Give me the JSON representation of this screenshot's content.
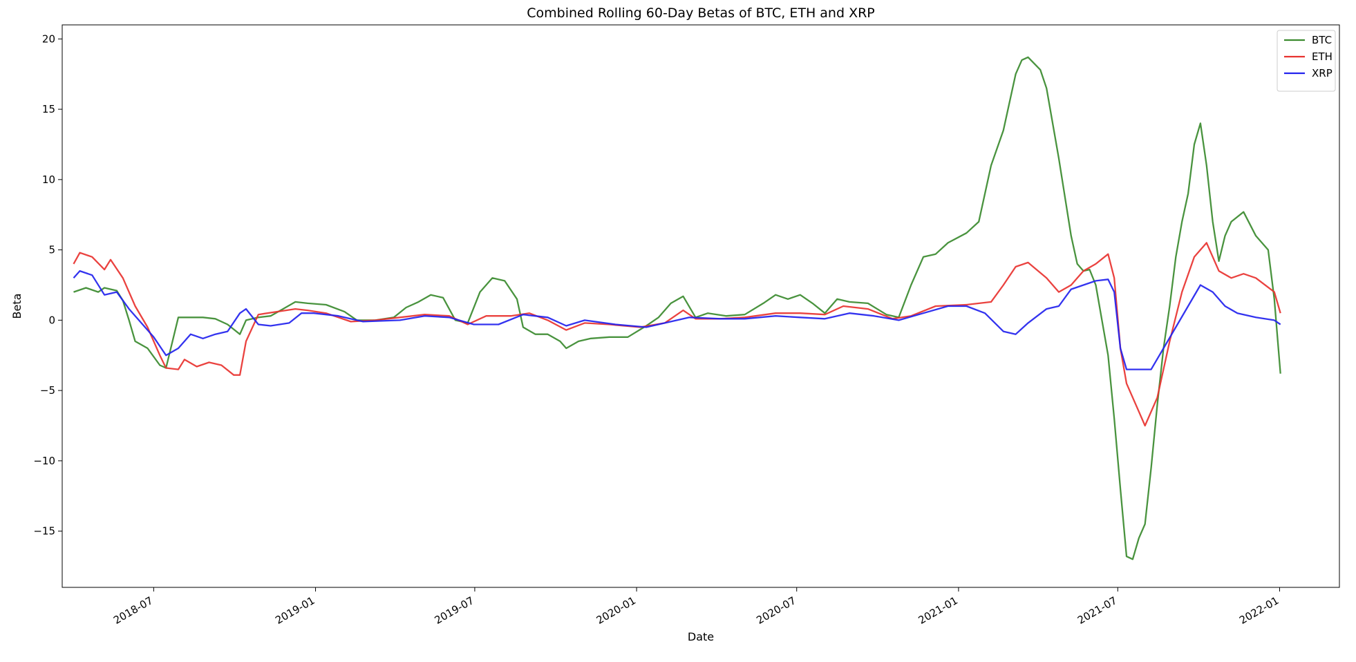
{
  "chart_data": {
    "type": "line",
    "title": "Combined Rolling 60-Day Betas of BTC, ETH and XRP",
    "xlabel": "Date",
    "ylabel": "Beta",
    "xlim": [
      "2018-03-19",
      "2022-03-10"
    ],
    "ylim": [
      -19,
      21
    ],
    "yticks": [
      20,
      15,
      10,
      5,
      0,
      -5,
      -10,
      -15
    ],
    "yticklabels": [
      "20",
      "15",
      "10",
      "5",
      "0",
      "−5",
      "−10",
      "−15"
    ],
    "xticks": [
      "2018-07",
      "2019-01",
      "2019-07",
      "2020-01",
      "2020-07",
      "2021-01",
      "2021-07",
      "2022-01"
    ],
    "grid": false,
    "legend_position": "top-right",
    "series": [
      {
        "name": "BTC",
        "color": "#3a8a2e",
        "points": [
          [
            "2018-04-01",
            2.0
          ],
          [
            "2018-04-15",
            2.3
          ],
          [
            "2018-04-29",
            2.0
          ],
          [
            "2018-05-06",
            2.3
          ],
          [
            "2018-05-20",
            2.1
          ],
          [
            "2018-05-27",
            1.4
          ],
          [
            "2018-06-03",
            0.0
          ],
          [
            "2018-06-10",
            -1.5
          ],
          [
            "2018-06-24",
            -2.0
          ],
          [
            "2018-07-08",
            -3.2
          ],
          [
            "2018-07-15",
            -3.4
          ],
          [
            "2018-07-29",
            0.2
          ],
          [
            "2018-08-12",
            0.2
          ],
          [
            "2018-08-26",
            0.2
          ],
          [
            "2018-09-09",
            0.1
          ],
          [
            "2018-09-23",
            -0.3
          ],
          [
            "2018-10-07",
            -1.0
          ],
          [
            "2018-10-14",
            0.0
          ],
          [
            "2018-10-28",
            0.2
          ],
          [
            "2018-11-11",
            0.3
          ],
          [
            "2018-11-25",
            0.8
          ],
          [
            "2018-12-09",
            1.3
          ],
          [
            "2018-12-23",
            1.2
          ],
          [
            "2019-01-13",
            1.1
          ],
          [
            "2019-02-03",
            0.6
          ],
          [
            "2019-02-17",
            0.0
          ],
          [
            "2019-03-10",
            0.0
          ],
          [
            "2019-03-31",
            0.2
          ],
          [
            "2019-04-14",
            0.9
          ],
          [
            "2019-04-28",
            1.3
          ],
          [
            "2019-05-12",
            1.8
          ],
          [
            "2019-05-26",
            1.6
          ],
          [
            "2019-06-09",
            0.0
          ],
          [
            "2019-06-23",
            -0.2
          ],
          [
            "2019-07-07",
            2.0
          ],
          [
            "2019-07-21",
            3.0
          ],
          [
            "2019-08-04",
            2.8
          ],
          [
            "2019-08-18",
            1.5
          ],
          [
            "2019-08-25",
            -0.5
          ],
          [
            "2019-09-08",
            -1.0
          ],
          [
            "2019-09-22",
            -1.0
          ],
          [
            "2019-10-06",
            -1.5
          ],
          [
            "2019-10-13",
            -2.0
          ],
          [
            "2019-10-27",
            -1.5
          ],
          [
            "2019-11-10",
            -1.3
          ],
          [
            "2019-12-01",
            -1.2
          ],
          [
            "2019-12-22",
            -1.2
          ],
          [
            "2020-01-12",
            -0.4
          ],
          [
            "2020-01-26",
            0.2
          ],
          [
            "2020-02-09",
            1.2
          ],
          [
            "2020-02-23",
            1.7
          ],
          [
            "2020-03-08",
            0.2
          ],
          [
            "2020-03-22",
            0.5
          ],
          [
            "2020-04-12",
            0.3
          ],
          [
            "2020-05-03",
            0.4
          ],
          [
            "2020-05-24",
            1.2
          ],
          [
            "2020-06-07",
            1.8
          ],
          [
            "2020-06-21",
            1.5
          ],
          [
            "2020-07-05",
            1.8
          ],
          [
            "2020-07-19",
            1.2
          ],
          [
            "2020-08-02",
            0.5
          ],
          [
            "2020-08-16",
            1.5
          ],
          [
            "2020-08-30",
            1.3
          ],
          [
            "2020-09-20",
            1.2
          ],
          [
            "2020-10-11",
            0.4
          ],
          [
            "2020-10-25",
            0.2
          ],
          [
            "2020-11-08",
            2.5
          ],
          [
            "2020-11-22",
            4.5
          ],
          [
            "2020-12-06",
            4.7
          ],
          [
            "2020-12-20",
            5.5
          ],
          [
            "2021-01-10",
            6.2
          ],
          [
            "2021-01-24",
            7.0
          ],
          [
            "2021-02-07",
            11.0
          ],
          [
            "2021-02-21",
            13.5
          ],
          [
            "2021-03-07",
            17.5
          ],
          [
            "2021-03-14",
            18.5
          ],
          [
            "2021-03-21",
            18.7
          ],
          [
            "2021-04-04",
            17.8
          ],
          [
            "2021-04-11",
            16.5
          ],
          [
            "2021-04-25",
            11.5
          ],
          [
            "2021-05-09",
            6.0
          ],
          [
            "2021-05-16",
            4.0
          ],
          [
            "2021-05-23",
            3.5
          ],
          [
            "2021-05-30",
            3.6
          ],
          [
            "2021-06-06",
            2.5
          ],
          [
            "2021-06-13",
            0.0
          ],
          [
            "2021-06-20",
            -2.5
          ],
          [
            "2021-06-27",
            -7.0
          ],
          [
            "2021-07-04",
            -12.0
          ],
          [
            "2021-07-11",
            -16.8
          ],
          [
            "2021-07-18",
            -17.0
          ],
          [
            "2021-07-25",
            -15.5
          ],
          [
            "2021-08-01",
            -14.5
          ],
          [
            "2021-08-08",
            -10.5
          ],
          [
            "2021-08-15",
            -6.0
          ],
          [
            "2021-08-22",
            -2.0
          ],
          [
            "2021-08-29",
            1.0
          ],
          [
            "2021-09-05",
            4.5
          ],
          [
            "2021-09-12",
            7.0
          ],
          [
            "2021-09-19",
            9.0
          ],
          [
            "2021-09-26",
            12.5
          ],
          [
            "2021-10-03",
            14.0
          ],
          [
            "2021-10-10",
            11.0
          ],
          [
            "2021-10-17",
            7.0
          ],
          [
            "2021-10-24",
            4.2
          ],
          [
            "2021-10-31",
            6.0
          ],
          [
            "2021-11-07",
            7.0
          ],
          [
            "2021-11-21",
            7.7
          ],
          [
            "2021-12-05",
            6.0
          ],
          [
            "2021-12-19",
            5.0
          ],
          [
            "2021-12-26",
            1.5
          ],
          [
            "2022-01-02",
            -3.8
          ]
        ]
      },
      {
        "name": "ETH",
        "color": "#e8322f",
        "points": [
          [
            "2018-04-01",
            4.0
          ],
          [
            "2018-04-08",
            4.8
          ],
          [
            "2018-04-22",
            4.5
          ],
          [
            "2018-05-06",
            3.6
          ],
          [
            "2018-05-13",
            4.3
          ],
          [
            "2018-05-27",
            3.0
          ],
          [
            "2018-06-10",
            1.0
          ],
          [
            "2018-06-24",
            -0.5
          ],
          [
            "2018-07-08",
            -2.5
          ],
          [
            "2018-07-15",
            -3.4
          ],
          [
            "2018-07-29",
            -3.5
          ],
          [
            "2018-08-05",
            -2.8
          ],
          [
            "2018-08-19",
            -3.3
          ],
          [
            "2018-09-02",
            -3.0
          ],
          [
            "2018-09-16",
            -3.2
          ],
          [
            "2018-09-30",
            -3.9
          ],
          [
            "2018-10-07",
            -3.9
          ],
          [
            "2018-10-14",
            -1.5
          ],
          [
            "2018-10-28",
            0.4
          ],
          [
            "2018-11-18",
            0.6
          ],
          [
            "2018-12-09",
            0.8
          ],
          [
            "2018-12-23",
            0.7
          ],
          [
            "2019-01-13",
            0.5
          ],
          [
            "2019-02-10",
            -0.1
          ],
          [
            "2019-03-10",
            0.0
          ],
          [
            "2019-04-07",
            0.2
          ],
          [
            "2019-05-05",
            0.4
          ],
          [
            "2019-06-02",
            0.3
          ],
          [
            "2019-06-23",
            -0.3
          ],
          [
            "2019-07-14",
            0.3
          ],
          [
            "2019-08-11",
            0.3
          ],
          [
            "2019-09-01",
            0.5
          ],
          [
            "2019-09-22",
            0.0
          ],
          [
            "2019-10-13",
            -0.7
          ],
          [
            "2019-11-03",
            -0.2
          ],
          [
            "2019-12-01",
            -0.3
          ],
          [
            "2020-01-05",
            -0.5
          ],
          [
            "2020-02-02",
            -0.2
          ],
          [
            "2020-02-23",
            0.7
          ],
          [
            "2020-03-08",
            0.1
          ],
          [
            "2020-04-05",
            0.1
          ],
          [
            "2020-05-03",
            0.2
          ],
          [
            "2020-06-07",
            0.5
          ],
          [
            "2020-07-05",
            0.5
          ],
          [
            "2020-08-02",
            0.4
          ],
          [
            "2020-08-23",
            1.0
          ],
          [
            "2020-09-20",
            0.8
          ],
          [
            "2020-10-18",
            0.1
          ],
          [
            "2020-11-08",
            0.3
          ],
          [
            "2020-12-06",
            1.0
          ],
          [
            "2021-01-10",
            1.1
          ],
          [
            "2021-02-07",
            1.3
          ],
          [
            "2021-02-21",
            2.5
          ],
          [
            "2021-03-07",
            3.8
          ],
          [
            "2021-03-21",
            4.1
          ],
          [
            "2021-04-11",
            3.0
          ],
          [
            "2021-04-25",
            2.0
          ],
          [
            "2021-05-09",
            2.5
          ],
          [
            "2021-05-23",
            3.5
          ],
          [
            "2021-06-06",
            4.0
          ],
          [
            "2021-06-20",
            4.7
          ],
          [
            "2021-06-27",
            3.0
          ],
          [
            "2021-07-04",
            -2.0
          ],
          [
            "2021-07-11",
            -4.5
          ],
          [
            "2021-07-25",
            -6.5
          ],
          [
            "2021-08-01",
            -7.5
          ],
          [
            "2021-08-15",
            -5.5
          ],
          [
            "2021-08-29",
            -1.5
          ],
          [
            "2021-09-12",
            2.0
          ],
          [
            "2021-09-26",
            4.5
          ],
          [
            "2021-10-10",
            5.5
          ],
          [
            "2021-10-24",
            3.5
          ],
          [
            "2021-11-07",
            3.0
          ],
          [
            "2021-11-21",
            3.3
          ],
          [
            "2021-12-05",
            3.0
          ],
          [
            "2021-12-26",
            2.0
          ],
          [
            "2022-01-02",
            0.5
          ]
        ]
      },
      {
        "name": "XRP",
        "color": "#2222ee",
        "points": [
          [
            "2018-04-01",
            3.0
          ],
          [
            "2018-04-08",
            3.5
          ],
          [
            "2018-04-22",
            3.2
          ],
          [
            "2018-05-06",
            1.8
          ],
          [
            "2018-05-20",
            2.0
          ],
          [
            "2018-06-03",
            0.8
          ],
          [
            "2018-06-17",
            -0.2
          ],
          [
            "2018-07-01",
            -1.2
          ],
          [
            "2018-07-15",
            -2.5
          ],
          [
            "2018-07-29",
            -2.0
          ],
          [
            "2018-08-12",
            -1.0
          ],
          [
            "2018-08-26",
            -1.3
          ],
          [
            "2018-09-09",
            -1.0
          ],
          [
            "2018-09-23",
            -0.8
          ],
          [
            "2018-10-07",
            0.5
          ],
          [
            "2018-10-14",
            0.8
          ],
          [
            "2018-10-28",
            -0.3
          ],
          [
            "2018-11-11",
            -0.4
          ],
          [
            "2018-12-02",
            -0.2
          ],
          [
            "2018-12-16",
            0.5
          ],
          [
            "2018-12-30",
            0.5
          ],
          [
            "2019-01-27",
            0.3
          ],
          [
            "2019-02-24",
            -0.1
          ],
          [
            "2019-04-07",
            0.0
          ],
          [
            "2019-05-05",
            0.3
          ],
          [
            "2019-06-02",
            0.2
          ],
          [
            "2019-06-30",
            -0.3
          ],
          [
            "2019-07-28",
            -0.3
          ],
          [
            "2019-08-25",
            0.4
          ],
          [
            "2019-09-22",
            0.2
          ],
          [
            "2019-10-13",
            -0.4
          ],
          [
            "2019-11-03",
            0.0
          ],
          [
            "2019-12-08",
            -0.3
          ],
          [
            "2020-01-12",
            -0.5
          ],
          [
            "2020-02-09",
            -0.1
          ],
          [
            "2020-03-01",
            0.2
          ],
          [
            "2020-04-05",
            0.1
          ],
          [
            "2020-05-03",
            0.1
          ],
          [
            "2020-06-07",
            0.3
          ],
          [
            "2020-07-05",
            0.2
          ],
          [
            "2020-08-02",
            0.1
          ],
          [
            "2020-08-30",
            0.5
          ],
          [
            "2020-09-27",
            0.3
          ],
          [
            "2020-10-25",
            0.0
          ],
          [
            "2020-11-22",
            0.5
          ],
          [
            "2020-12-20",
            1.0
          ],
          [
            "2021-01-10",
            1.0
          ],
          [
            "2021-01-31",
            0.5
          ],
          [
            "2021-02-21",
            -0.8
          ],
          [
            "2021-03-07",
            -1.0
          ],
          [
            "2021-03-21",
            -0.2
          ],
          [
            "2021-04-11",
            0.8
          ],
          [
            "2021-04-25",
            1.0
          ],
          [
            "2021-05-09",
            2.2
          ],
          [
            "2021-05-23",
            2.5
          ],
          [
            "2021-06-06",
            2.8
          ],
          [
            "2021-06-20",
            2.9
          ],
          [
            "2021-06-27",
            2.0
          ],
          [
            "2021-07-04",
            -2.0
          ],
          [
            "2021-07-11",
            -3.5
          ],
          [
            "2021-07-25",
            -3.5
          ],
          [
            "2021-08-08",
            -3.5
          ],
          [
            "2021-08-22",
            -2.0
          ],
          [
            "2021-09-05",
            -0.5
          ],
          [
            "2021-09-19",
            1.0
          ],
          [
            "2021-10-03",
            2.5
          ],
          [
            "2021-10-17",
            2.0
          ],
          [
            "2021-10-31",
            1.0
          ],
          [
            "2021-11-14",
            0.5
          ],
          [
            "2021-12-05",
            0.2
          ],
          [
            "2021-12-26",
            0.0
          ],
          [
            "2022-01-02",
            -0.3
          ]
        ]
      }
    ]
  }
}
